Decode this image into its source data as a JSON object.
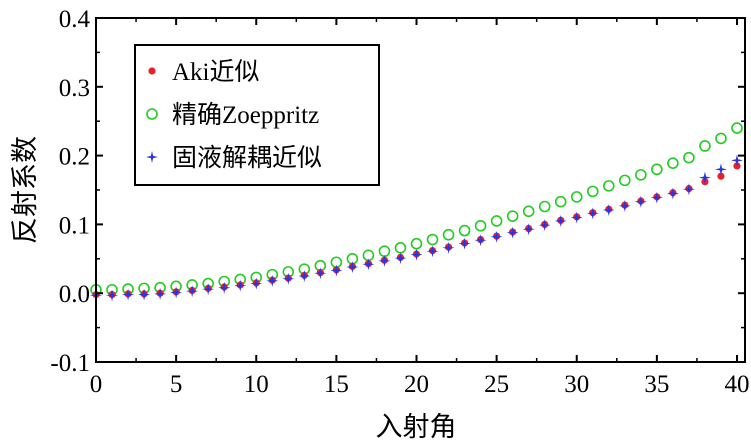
{
  "chart_data": {
    "type": "scatter",
    "xlabel": "入射角",
    "ylabel": "反射系数",
    "xlim": [
      0,
      40.5
    ],
    "ylim": [
      -0.1,
      0.4
    ],
    "xticks": [
      0,
      5,
      10,
      15,
      20,
      25,
      30,
      35,
      40
    ],
    "yticks": [
      -0.1,
      0.0,
      0.1,
      0.2,
      0.3,
      0.4
    ],
    "xtick_labels": [
      "0",
      "5",
      "10",
      "15",
      "20",
      "25",
      "30",
      "35",
      "40"
    ],
    "ytick_labels": [
      "-0.1",
      "0.0",
      "0.1",
      "0.2",
      "0.3",
      "0.4"
    ],
    "grid": false,
    "legend_position": "top-left",
    "x": [
      0,
      1,
      2,
      3,
      4,
      5,
      6,
      7,
      8,
      9,
      10,
      11,
      12,
      13,
      14,
      15,
      16,
      17,
      18,
      19,
      20,
      21,
      22,
      23,
      24,
      25,
      26,
      27,
      28,
      29,
      30,
      31,
      32,
      33,
      34,
      35,
      36,
      37,
      38,
      39,
      40
    ],
    "series": [
      {
        "name": "Aki近似",
        "marker": "dot",
        "color": "#e8202a",
        "values": [
          -0.002,
          -0.002,
          -0.001,
          -0.001,
          0.0,
          0.002,
          0.004,
          0.007,
          0.009,
          0.012,
          0.015,
          0.019,
          0.022,
          0.026,
          0.03,
          0.034,
          0.039,
          0.043,
          0.048,
          0.052,
          0.057,
          0.062,
          0.067,
          0.073,
          0.078,
          0.083,
          0.089,
          0.094,
          0.1,
          0.106,
          0.111,
          0.117,
          0.122,
          0.128,
          0.134,
          0.14,
          0.146,
          0.152,
          0.162,
          0.17,
          0.185
        ]
      },
      {
        "name": "精确Zoeppritz",
        "marker": "circle",
        "color": "#22cc22",
        "values": [
          0.005,
          0.005,
          0.006,
          0.007,
          0.008,
          0.01,
          0.012,
          0.014,
          0.017,
          0.02,
          0.023,
          0.027,
          0.031,
          0.035,
          0.04,
          0.045,
          0.05,
          0.055,
          0.061,
          0.066,
          0.072,
          0.078,
          0.085,
          0.091,
          0.098,
          0.105,
          0.112,
          0.119,
          0.126,
          0.133,
          0.14,
          0.148,
          0.156,
          0.164,
          0.172,
          0.18,
          0.189,
          0.197,
          0.214,
          0.225,
          0.24
        ]
      },
      {
        "name": "固液解耦近似",
        "marker": "star",
        "color": "#2a35e0",
        "values": [
          -0.003,
          -0.003,
          -0.002,
          -0.002,
          -0.001,
          0.001,
          0.003,
          0.006,
          0.008,
          0.011,
          0.014,
          0.018,
          0.021,
          0.025,
          0.029,
          0.033,
          0.038,
          0.042,
          0.047,
          0.051,
          0.056,
          0.061,
          0.066,
          0.072,
          0.077,
          0.082,
          0.088,
          0.093,
          0.099,
          0.105,
          0.11,
          0.116,
          0.121,
          0.127,
          0.133,
          0.139,
          0.145,
          0.151,
          0.168,
          0.18,
          0.193
        ]
      }
    ]
  }
}
